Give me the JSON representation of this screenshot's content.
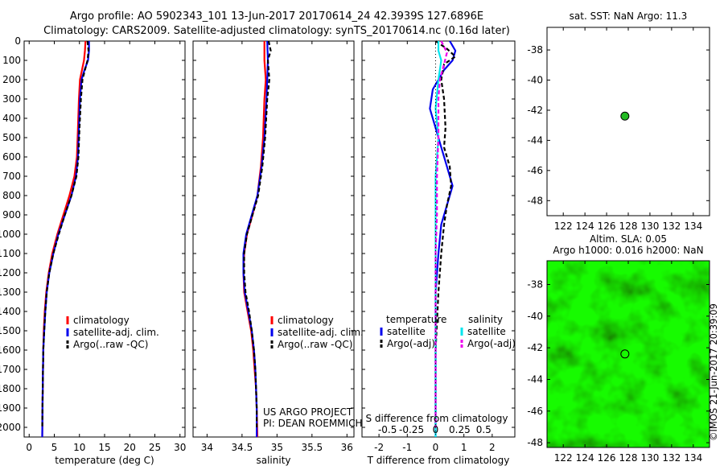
{
  "titles": {
    "line1": "Argo profile: AO 5902343_101 13-Jun-2017 20170614_24 42.3939S 127.6896E",
    "line2": "Climatology: CARS2009. Satellite-adjusted climatology: synTS_20170614.nc (0.16d later)"
  },
  "colors": {
    "climatology": "#ff0000",
    "satellite": "#0000ee",
    "argo": "#000000",
    "satellite_s": "#00e5ee",
    "argo_s": "#ee00ee",
    "point_marker": "#22bb22"
  },
  "chart_data": [
    {
      "type": "line",
      "id": "temperature",
      "xlabel": "temperature (deg C)",
      "xlim": [
        -1,
        31
      ],
      "ylim": [
        2050,
        0
      ],
      "xticks": [
        0,
        5,
        10,
        15,
        20,
        25,
        30
      ],
      "yticks": [
        0,
        100,
        200,
        300,
        400,
        500,
        600,
        700,
        800,
        900,
        1000,
        1100,
        1200,
        1300,
        1400,
        1500,
        1600,
        1700,
        1800,
        1900,
        2000
      ],
      "legend": [
        "climatology",
        "satellite-adj. clim.",
        "Argo(..raw -QC)"
      ],
      "series": [
        {
          "name": "climatology",
          "color": "#ff0000",
          "dash": "",
          "points": [
            [
              11.2,
              0
            ],
            [
              11.1,
              50
            ],
            [
              10.9,
              100
            ],
            [
              10.5,
              150
            ],
            [
              10.1,
              200
            ],
            [
              9.9,
              300
            ],
            [
              9.7,
              450
            ],
            [
              9.5,
              600
            ],
            [
              9.0,
              700
            ],
            [
              8.0,
              800
            ],
            [
              6.8,
              900
            ],
            [
              5.6,
              1000
            ],
            [
              4.6,
              1100
            ],
            [
              3.9,
              1200
            ],
            [
              3.4,
              1300
            ],
            [
              3.1,
              1400
            ],
            [
              2.9,
              1500
            ],
            [
              2.8,
              1600
            ],
            [
              2.7,
              1800
            ],
            [
              2.6,
              2050
            ]
          ]
        },
        {
          "name": "satellite-adj. clim.",
          "color": "#0000ee",
          "dash": "",
          "points": [
            [
              11.9,
              0
            ],
            [
              11.9,
              50
            ],
            [
              11.7,
              100
            ],
            [
              11.0,
              150
            ],
            [
              10.4,
              200
            ],
            [
              10.1,
              300
            ],
            [
              9.9,
              450
            ],
            [
              9.7,
              600
            ],
            [
              9.3,
              700
            ],
            [
              8.4,
              800
            ],
            [
              7.1,
              900
            ],
            [
              5.8,
              1000
            ],
            [
              4.8,
              1100
            ],
            [
              4.0,
              1200
            ],
            [
              3.5,
              1300
            ],
            [
              3.2,
              1400
            ],
            [
              3.0,
              1500
            ],
            [
              2.8,
              1600
            ],
            [
              2.7,
              1800
            ],
            [
              2.6,
              2050
            ]
          ]
        },
        {
          "name": "Argo(..raw -QC)",
          "color": "#000000",
          "dash": "5,3",
          "points": [
            [
              11.6,
              0
            ],
            [
              11.8,
              50
            ],
            [
              11.6,
              100
            ],
            [
              11.1,
              150
            ],
            [
              10.6,
              200
            ],
            [
              10.3,
              300
            ],
            [
              10.0,
              450
            ],
            [
              9.8,
              600
            ],
            [
              9.4,
              700
            ],
            [
              8.4,
              800
            ],
            [
              7.1,
              900
            ],
            [
              5.9,
              1000
            ],
            [
              4.8,
              1100
            ],
            [
              4.0,
              1200
            ],
            [
              3.5,
              1300
            ],
            [
              3.2,
              1400
            ],
            [
              3.0,
              1500
            ],
            [
              2.8,
              1600
            ],
            [
              2.7,
              1800
            ],
            [
              2.6,
              2000
            ]
          ]
        }
      ]
    },
    {
      "type": "line",
      "id": "salinity",
      "xlabel": "salinity",
      "xlim": [
        33.8,
        36.1
      ],
      "ylim": [
        2050,
        0
      ],
      "xticks": [
        34,
        34.5,
        35,
        35.5,
        36
      ],
      "legend": [
        "climatology",
        "satellite-adj. clim.",
        "Argo(..raw -QC)"
      ],
      "annotation": [
        "US ARGO PROJECT",
        "PI: DEAN ROEMMICH"
      ],
      "series": [
        {
          "name": "climatology",
          "color": "#ff0000",
          "dash": "",
          "points": [
            [
              34.82,
              0
            ],
            [
              34.82,
              100
            ],
            [
              34.84,
              200
            ],
            [
              34.82,
              300
            ],
            [
              34.8,
              500
            ],
            [
              34.77,
              650
            ],
            [
              34.72,
              800
            ],
            [
              34.65,
              900
            ],
            [
              34.57,
              1000
            ],
            [
              34.53,
              1100
            ],
            [
              34.52,
              1200
            ],
            [
              34.53,
              1300
            ],
            [
              34.58,
              1400
            ],
            [
              34.63,
              1500
            ],
            [
              34.66,
              1600
            ],
            [
              34.68,
              1700
            ],
            [
              34.7,
              1800
            ],
            [
              34.71,
              1900
            ],
            [
              34.72,
              2050
            ]
          ]
        },
        {
          "name": "satellite-adj. clim.",
          "color": "#0000ee",
          "dash": "",
          "points": [
            [
              34.86,
              0
            ],
            [
              34.87,
              100
            ],
            [
              34.86,
              200
            ],
            [
              34.85,
              300
            ],
            [
              34.82,
              500
            ],
            [
              34.78,
              650
            ],
            [
              34.72,
              800
            ],
            [
              34.64,
              900
            ],
            [
              34.56,
              1000
            ],
            [
              34.52,
              1100
            ],
            [
              34.52,
              1200
            ],
            [
              34.54,
              1300
            ],
            [
              34.59,
              1400
            ],
            [
              34.64,
              1500
            ],
            [
              34.67,
              1600
            ],
            [
              34.69,
              1700
            ],
            [
              34.7,
              1800
            ],
            [
              34.71,
              1900
            ],
            [
              34.71,
              2050
            ]
          ]
        },
        {
          "name": "Argo(..raw -QC)",
          "color": "#000000",
          "dash": "5,3",
          "points": [
            [
              34.88,
              0
            ],
            [
              34.91,
              50
            ],
            [
              34.87,
              100
            ],
            [
              34.89,
              200
            ],
            [
              34.86,
              300
            ],
            [
              34.83,
              500
            ],
            [
              34.79,
              650
            ],
            [
              34.73,
              800
            ],
            [
              34.65,
              900
            ],
            [
              34.57,
              1000
            ],
            [
              34.53,
              1100
            ],
            [
              34.53,
              1200
            ],
            [
              34.55,
              1300
            ],
            [
              34.6,
              1400
            ],
            [
              34.64,
              1500
            ],
            [
              34.67,
              1600
            ],
            [
              34.69,
              1700
            ],
            [
              34.7,
              1800
            ],
            [
              34.71,
              1900
            ],
            [
              34.71,
              2000
            ]
          ]
        }
      ]
    },
    {
      "type": "line",
      "id": "difference",
      "xlabel": "T difference from climatology",
      "xlabel_top": "S difference from climatology",
      "xlim": [
        -2.6,
        2.8
      ],
      "ylim": [
        2050,
        0
      ],
      "xticks": [
        -2,
        -1,
        0,
        1,
        2
      ],
      "top_ticks": [
        {
          "x": -1.7,
          "label": "-0.5"
        },
        {
          "x": -0.85,
          "label": "-0.25"
        },
        {
          "x": 0,
          "label": "0"
        },
        {
          "x": 0.85,
          "label": "0.25"
        },
        {
          "x": 1.7,
          "label": "0.5"
        }
      ],
      "legend_left": {
        "title": "temperature",
        "items": [
          "satellite",
          "Argo(-adj)"
        ]
      },
      "legend_right": {
        "title": "salinity",
        "items": [
          "satellite",
          "Argo(-adj)"
        ]
      },
      "series": [
        {
          "name": "temperature satellite",
          "color": "#0000ee",
          "dash": "",
          "points": [
            [
              0.5,
              0
            ],
            [
              0.7,
              50
            ],
            [
              0.6,
              100
            ],
            [
              0.3,
              150
            ],
            [
              -0.1,
              250
            ],
            [
              -0.2,
              350
            ],
            [
              0.0,
              450
            ],
            [
              0.2,
              550
            ],
            [
              0.4,
              650
            ],
            [
              0.6,
              750
            ],
            [
              0.4,
              850
            ],
            [
              0.2,
              950
            ],
            [
              0.1,
              1100
            ],
            [
              0.0,
              1300
            ],
            [
              0.0,
              1600
            ],
            [
              0.0,
              2050
            ]
          ]
        },
        {
          "name": "temperature Argo(-adj)",
          "color": "#000000",
          "dash": "5,3",
          "points": [
            [
              0.0,
              0
            ],
            [
              0.4,
              40
            ],
            [
              0.7,
              80
            ],
            [
              0.3,
              120
            ],
            [
              0.2,
              200
            ],
            [
              0.3,
              300
            ],
            [
              0.35,
              450
            ],
            [
              0.3,
              550
            ],
            [
              0.5,
              650
            ],
            [
              0.55,
              750
            ],
            [
              0.4,
              850
            ],
            [
              0.3,
              950
            ],
            [
              0.2,
              1100
            ],
            [
              0.1,
              1300
            ],
            [
              0.0,
              1600
            ],
            [
              0.0,
              2000
            ]
          ]
        },
        {
          "name": "salinity satellite",
          "color": "#00e5ee",
          "dash": "",
          "points": [
            [
              0.1,
              0
            ],
            [
              0.1,
              50
            ],
            [
              0.2,
              100
            ],
            [
              0.1,
              200
            ],
            [
              0.0,
              350
            ],
            [
              0.1,
              500
            ],
            [
              0.0,
              700
            ],
            [
              0.0,
              900
            ],
            [
              0.0,
              1100
            ],
            [
              0.0,
              1300
            ],
            [
              0.0,
              1600
            ],
            [
              0.0,
              2050
            ]
          ]
        },
        {
          "name": "salinity Argo(-adj)",
          "color": "#ee00ee",
          "dash": "5,3",
          "points": [
            [
              0.2,
              0
            ],
            [
              0.4,
              60
            ],
            [
              0.3,
              120
            ],
            [
              0.15,
              200
            ],
            [
              0.1,
              300
            ],
            [
              0.1,
              500
            ],
            [
              0.05,
              700
            ],
            [
              0.05,
              900
            ],
            [
              0.0,
              1100
            ],
            [
              0.0,
              1300
            ],
            [
              0.0,
              1600
            ],
            [
              0.0,
              2000
            ]
          ]
        }
      ]
    },
    {
      "type": "scatter",
      "id": "sst-map",
      "title": "sat. SST: NaN Argo: 11.3",
      "xlim": [
        120.5,
        135.5
      ],
      "ylim": [
        -49,
        -36.5
      ],
      "xticks": [
        122,
        124,
        126,
        128,
        130,
        132,
        134
      ],
      "yticks": [
        -38,
        -40,
        -42,
        -44,
        -46,
        -48
      ],
      "points": [
        [
          127.69,
          -42.39
        ]
      ]
    },
    {
      "type": "heatmap",
      "id": "sla-map",
      "title_lines": [
        "Altim. SLA: 0.05",
        "Argo h1000: 0.016 h2000: NaN"
      ],
      "xlim": [
        120.5,
        135.5
      ],
      "ylim": [
        -48.3,
        -36.5
      ],
      "xticks": [
        122,
        124,
        126,
        128,
        130,
        132,
        134
      ],
      "yticks": [
        -38,
        -40,
        -42,
        -44,
        -46,
        -48
      ],
      "points": [
        [
          127.69,
          -42.39
        ]
      ]
    }
  ],
  "watermark": "©IMOS 21-Jun-2017 20:39:09"
}
